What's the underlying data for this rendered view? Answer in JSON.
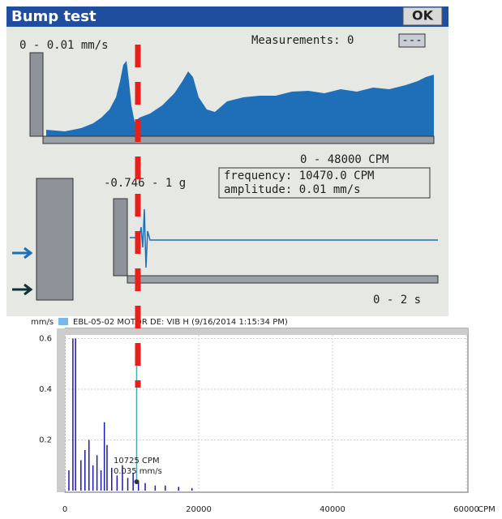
{
  "device": {
    "title": "Bump test",
    "ok_button": "OK",
    "spectrum_range": "0 - 0.01 mm/s",
    "measurements": "Measurements: 0",
    "menu_button": "---",
    "frequency_range": "0 - 48000 CPM",
    "waveform_range": "-0.746 - 1 g",
    "cursor_frequency": "frequency: 10470.0 CPM",
    "cursor_amplitude": "amplitude: 0.01 mm/s",
    "time_range": "0 - 2 s"
  },
  "chart_data": {
    "type": "bar",
    "title": "EBL-05-02 MOTOR DE: VIB H (9/16/2014 1:15:34 PM)",
    "y_label": "mm/s",
    "x_label": "CPM",
    "color": "#1a1aa8",
    "x": [
      600,
      1200,
      1600,
      2400,
      3000,
      3600,
      4200,
      4800,
      5400,
      5900,
      6300,
      7000,
      7800,
      8600,
      9400,
      10200,
      11000,
      12000,
      13500,
      15000,
      17000,
      19000
    ],
    "values": [
      0.08,
      0.6,
      0.6,
      0.12,
      0.16,
      0.2,
      0.1,
      0.14,
      0.08,
      0.27,
      0.18,
      0.09,
      0.06,
      0.1,
      0.05,
      0.07,
      0.04,
      0.03,
      0.02,
      0.02,
      0.015,
      0.01
    ],
    "xlim": [
      0,
      60000
    ],
    "ylim": [
      0,
      0.64
    ],
    "xticks": [
      0,
      20000,
      40000,
      60000
    ],
    "yticks": [
      0.2,
      0.4,
      0.6
    ],
    "grid": true,
    "cursor": {
      "x": 10725,
      "y": 0.035,
      "x_label": "10725 CPM",
      "y_label": "0.035 mm/s"
    }
  }
}
